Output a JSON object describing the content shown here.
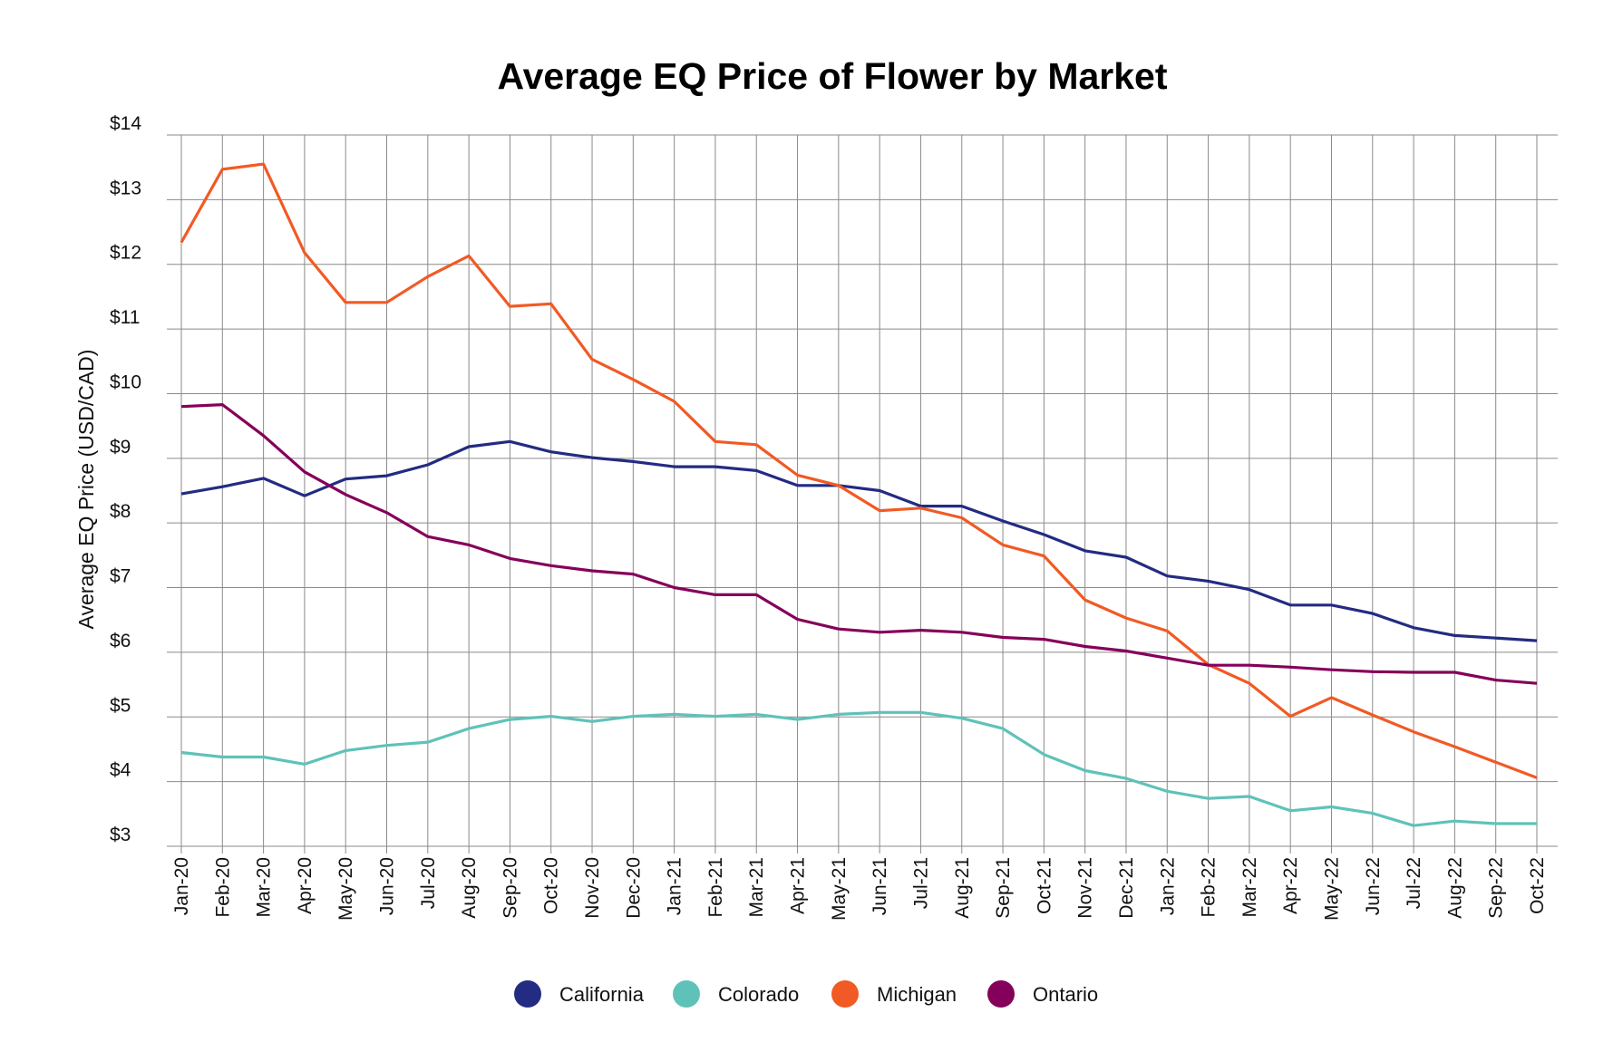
{
  "chart_data": {
    "type": "line",
    "title": "Average EQ Price of Flower by Market",
    "xlabel": "",
    "ylabel": "Average EQ Price (USD/CAD)",
    "ylim": [
      3,
      14
    ],
    "yticks": [
      3,
      4,
      5,
      6,
      7,
      8,
      9,
      10,
      11,
      12,
      13,
      14
    ],
    "ytick_labels": [
      "$3",
      "$4",
      "$5",
      "$6",
      "$7",
      "$8",
      "$9",
      "$10",
      "$11",
      "$12",
      "$13",
      "$14"
    ],
    "grid": true,
    "legend_position": "bottom",
    "categories": [
      "Jan-20",
      "Feb-20",
      "Mar-20",
      "Apr-20",
      "May-20",
      "Jun-20",
      "Jul-20",
      "Aug-20",
      "Sep-20",
      "Oct-20",
      "Nov-20",
      "Dec-20",
      "Jan-21",
      "Feb-21",
      "Mar-21",
      "Apr-21",
      "May-21",
      "Jun-21",
      "Jul-21",
      "Aug-21",
      "Sep-21",
      "Oct-21",
      "Nov-21",
      "Dec-21",
      "Jan-22",
      "Feb-22",
      "Mar-22",
      "Apr-22",
      "May-22",
      "Jun-22",
      "Jul-22",
      "Aug-22",
      "Sep-22",
      "Oct-22"
    ],
    "series": [
      {
        "name": "California",
        "color": "#232b82",
        "values": [
          8.45,
          8.56,
          8.69,
          8.42,
          8.68,
          8.73,
          8.9,
          9.18,
          9.26,
          9.1,
          9.01,
          8.95,
          8.87,
          8.87,
          8.81,
          8.58,
          8.58,
          8.5,
          8.26,
          8.26,
          8.03,
          7.82,
          7.57,
          7.47,
          7.18,
          7.1,
          6.97,
          6.73,
          6.73,
          6.6,
          6.38,
          6.26,
          6.22,
          6.18
        ]
      },
      {
        "name": "Colorado",
        "color": "#5fc2b9",
        "values": [
          4.45,
          4.38,
          4.38,
          4.27,
          4.48,
          4.56,
          4.61,
          4.82,
          4.96,
          5.01,
          4.93,
          5.01,
          5.04,
          5.01,
          5.04,
          4.96,
          5.04,
          5.07,
          5.07,
          4.98,
          4.82,
          4.42,
          4.17,
          4.05,
          3.85,
          3.74,
          3.77,
          3.55,
          3.61,
          3.51,
          3.32,
          3.39,
          3.35,
          3.35
        ]
      },
      {
        "name": "Michigan",
        "color": "#f15a24",
        "values": [
          12.34,
          13.47,
          13.55,
          12.18,
          11.41,
          11.41,
          11.81,
          12.13,
          11.35,
          11.39,
          10.53,
          10.22,
          9.88,
          9.26,
          9.21,
          8.74,
          8.58,
          8.19,
          8.23,
          8.08,
          7.66,
          7.49,
          6.81,
          6.53,
          6.33,
          5.81,
          5.52,
          5.01,
          5.3,
          5.03,
          4.77,
          4.54,
          4.3,
          4.06
        ]
      },
      {
        "name": "Ontario",
        "color": "#85005a",
        "values": [
          9.8,
          9.83,
          9.35,
          8.79,
          8.44,
          8.16,
          7.79,
          7.66,
          7.45,
          7.34,
          7.26,
          7.21,
          7.0,
          6.89,
          6.89,
          6.51,
          6.36,
          6.31,
          6.34,
          6.31,
          6.23,
          6.2,
          6.09,
          6.02,
          5.91,
          5.8,
          5.8,
          5.77,
          5.73,
          5.7,
          5.69,
          5.69,
          5.57,
          5.52
        ]
      }
    ]
  }
}
